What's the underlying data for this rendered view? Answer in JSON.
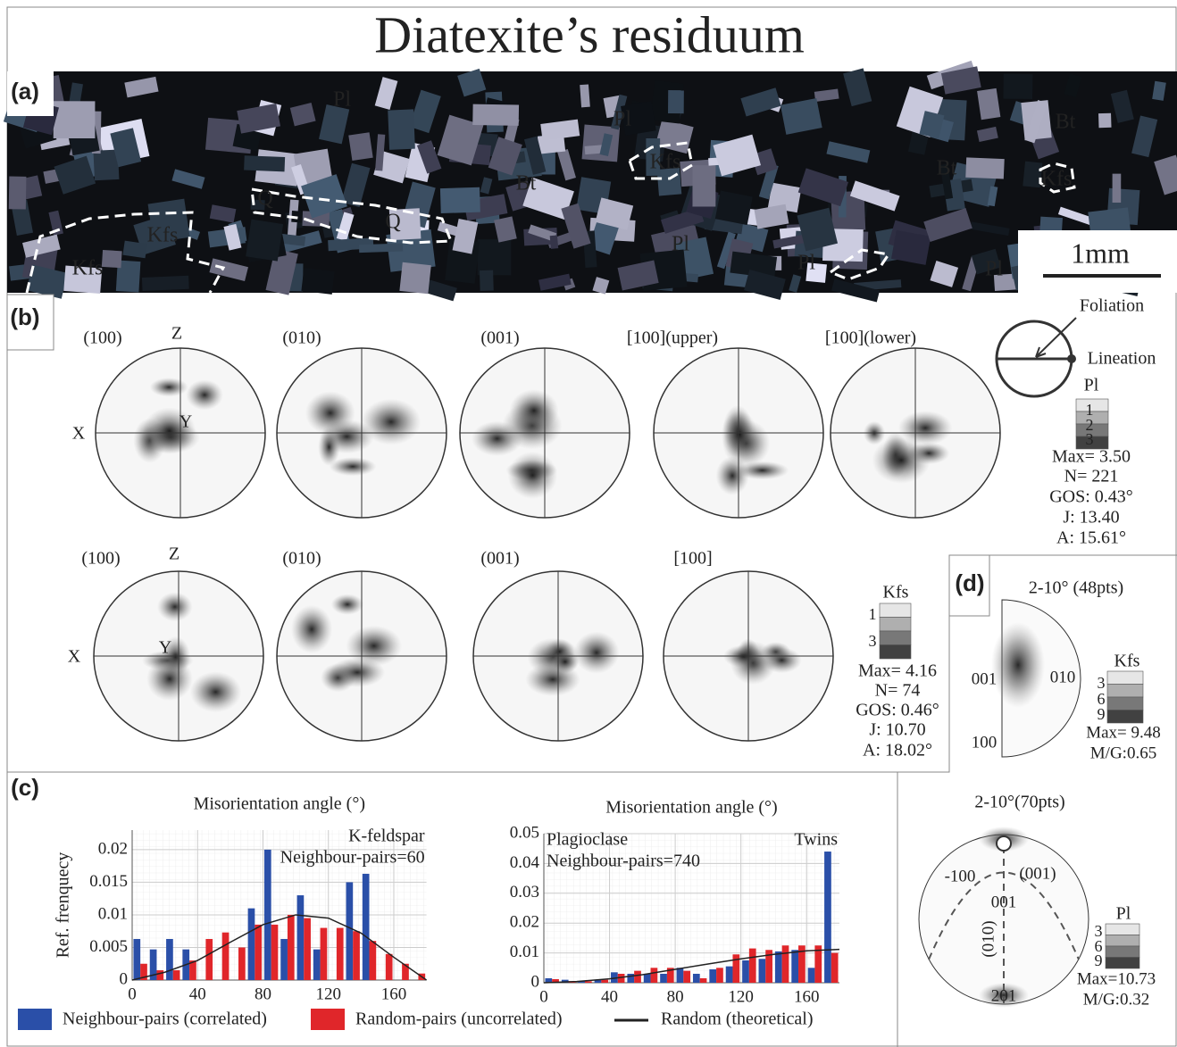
{
  "chart_data": [
    {
      "type": "histogram",
      "title": "Misorientation angle (°)",
      "y_label": "Ref. frenquecy",
      "annotations": [
        "K-feldspar",
        "Neighbour-pairs=60"
      ],
      "bins": [
        0,
        10,
        20,
        30,
        40,
        50,
        60,
        70,
        80,
        90,
        100,
        110,
        120,
        130,
        140,
        150,
        160,
        170,
        180
      ],
      "series": [
        {
          "name": "Neighbour-pairs (correlated)",
          "color": "#2a4fa8",
          "values": [
            0.0063,
            0.0047,
            0.0063,
            0.0047,
            0,
            0,
            0,
            0.011,
            0.02,
            0.0063,
            0.013,
            0.0047,
            0,
            0.015,
            0.0163,
            0,
            0,
            0
          ]
        },
        {
          "name": "Random-pairs (uncorrelated)",
          "color": "#e0262a",
          "values": [
            0.0025,
            0.0015,
            0.0015,
            0.003,
            0.0063,
            0.0073,
            0.005,
            0.0085,
            0.0085,
            0.01,
            0.0095,
            0.008,
            0.008,
            0.0075,
            0.006,
            0.004,
            0.0025,
            0.001
          ]
        }
      ],
      "curve": {
        "name": "Random (theoretical)",
        "color": "#222222",
        "x": [
          0,
          20,
          40,
          60,
          80,
          100,
          120,
          140,
          160,
          180
        ],
        "values": [
          0,
          0.0012,
          0.003,
          0.0058,
          0.0085,
          0.01,
          0.0095,
          0.0072,
          0.0035,
          0
        ]
      },
      "xlim": [
        0,
        180
      ],
      "xticks": [
        0,
        40,
        80,
        120,
        160
      ],
      "ylim": [
        0,
        0.023
      ],
      "yticks": [
        0,
        0.005,
        0.01,
        0.015,
        0.02
      ],
      "grid": true
    },
    {
      "type": "histogram",
      "title": "Misorientation angle (°)",
      "annotations": [
        "Plagioclase",
        "Neighbour-pairs=740",
        "Twins"
      ],
      "bins": [
        0,
        10,
        20,
        30,
        40,
        50,
        60,
        70,
        80,
        90,
        100,
        110,
        120,
        130,
        140,
        150,
        160,
        170,
        180
      ],
      "series": [
        {
          "color": "#2a4fa8",
          "values": [
            0.0015,
            0.001,
            0.0005,
            0.001,
            0.0035,
            0.003,
            0.003,
            0.003,
            0.005,
            0.003,
            0.0045,
            0.0055,
            0.0075,
            0.008,
            0.0105,
            0.011,
            0.005,
            0.044
          ]
        },
        {
          "color": "#e0262a",
          "values": [
            0.0012,
            0.0005,
            0.0005,
            0.001,
            0.003,
            0.004,
            0.005,
            0.005,
            0.004,
            0.0015,
            0.005,
            0.0095,
            0.0115,
            0.011,
            0.0125,
            0.0125,
            0.0125,
            0.01
          ]
        }
      ],
      "curve": {
        "color": "#222222",
        "x": [
          0,
          20,
          40,
          60,
          80,
          100,
          120,
          140,
          160,
          180
        ],
        "values": [
          0,
          0.0004,
          0.0013,
          0.0027,
          0.0045,
          0.0063,
          0.008,
          0.0095,
          0.0107,
          0.0112
        ]
      },
      "xlim": [
        0,
        180
      ],
      "xticks": [
        0,
        40,
        80,
        120,
        160
      ],
      "ylim": [
        0,
        0.05
      ],
      "yticks": [
        0,
        0.01,
        0.02,
        0.03,
        0.04,
        0.05
      ],
      "grid": true
    }
  ],
  "figure": {
    "title": "Diatexite’s residuum",
    "panel_a": {
      "label": "(a)",
      "labels": [
        "Pl",
        "Pl",
        "Kfs",
        "Bt",
        "Bt",
        "Bt",
        "Kfs",
        "Q",
        "Q",
        "Kfs",
        "Kfs",
        "Pl",
        "Pl",
        "Pl"
      ],
      "scale_bar": "1mm"
    },
    "panel_b": {
      "label": "(b)",
      "reference": {
        "foliation": "Foliation",
        "lineation": "Lineation"
      },
      "rows": [
        {
          "projections": [
            "(100)",
            "(010)",
            "(001)",
            "[100](upper)",
            "[100](lower)"
          ],
          "axis_labels": [
            "Z",
            "X",
            "Y"
          ],
          "key": {
            "mineral": "Pl",
            "scale": [
              "1",
              "2",
              "3"
            ],
            "stats": [
              "Max= 3.50",
              "N= 221",
              "GOS: 0.43°",
              "J: 13.40",
              "A: 15.61°"
            ]
          }
        },
        {
          "projections": [
            "(100)",
            "(010)",
            "(001)",
            "[100]"
          ],
          "axis_labels": [
            "Z",
            "X",
            "Y"
          ],
          "key": {
            "mineral": "Kfs",
            "scale": [
              "1",
              "3"
            ],
            "stats": [
              "Max= 4.16",
              "N= 74",
              "GOS: 0.46°",
              "J: 10.70",
              "A: 18.02°"
            ]
          }
        }
      ]
    },
    "panel_c": {
      "label": "(c)"
    },
    "panel_d": {
      "label": "(d)",
      "plots": [
        {
          "title": "2-10° (48pts)",
          "labels": [
            "001",
            "010",
            "100"
          ],
          "key": {
            "mineral": "Kfs",
            "scale": [
              "3",
              "6",
              "9"
            ],
            "stats": [
              "Max= 9.48",
              "M/G:0.65"
            ]
          }
        },
        {
          "title": "2-10°(70pts)",
          "labels": [
            "-100",
            "(001)",
            "001",
            "(010)",
            "201"
          ],
          "key": {
            "mineral": "Pl",
            "scale": [
              "3",
              "6",
              "9"
            ],
            "stats": [
              "Max=10.73",
              "M/G:0.32"
            ]
          }
        }
      ]
    }
  }
}
